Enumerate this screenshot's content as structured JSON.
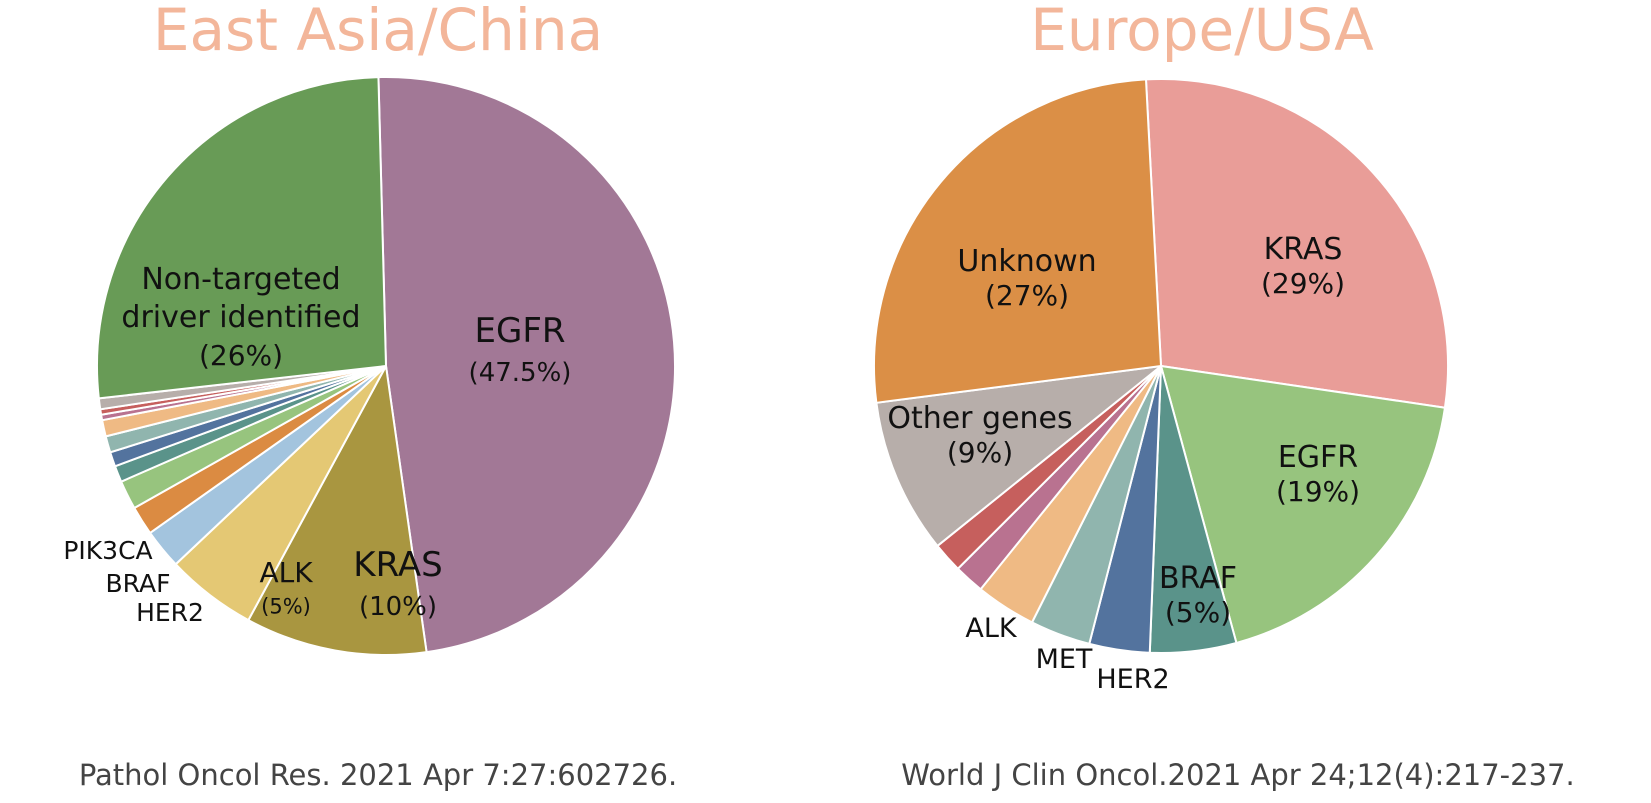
{
  "colors": {
    "title": "#f3b69a",
    "slice_edge": "#ffffff"
  },
  "chart_data": [
    {
      "type": "pie",
      "title": "East Asia/China",
      "source": "Pathol Oncol Res. 2021 Apr 7:27:602726.",
      "slices": [
        {
          "name": "EGFR",
          "value": 47.5,
          "color": "#a27896",
          "label": "EGFR",
          "pct_label": "(47.5%)"
        },
        {
          "name": "KRAS",
          "value": 10,
          "color": "#a99640",
          "label": "KRAS",
          "pct_label": "(10%)"
        },
        {
          "name": "ALK",
          "value": 5,
          "color": "#e4c874",
          "label": "ALK",
          "pct_label": "(5%)"
        },
        {
          "name": "HER2",
          "value": 2.2,
          "color": "#a3c4de",
          "label": "HER2",
          "pct_label": ""
        },
        {
          "name": "BRAF",
          "value": 1.6,
          "color": "#db8b42",
          "label": "BRAF",
          "pct_label": ""
        },
        {
          "name": "PIK3CA",
          "value": 1.6,
          "color": "#97c47e",
          "label": "PIK3CA",
          "pct_label": ""
        },
        {
          "name": "other-1",
          "value": 0.9,
          "color": "#5a938a",
          "label": "",
          "pct_label": ""
        },
        {
          "name": "other-2",
          "value": 0.8,
          "color": "#53739e",
          "label": "",
          "pct_label": ""
        },
        {
          "name": "other-3",
          "value": 0.9,
          "color": "#90b5ae",
          "label": "",
          "pct_label": ""
        },
        {
          "name": "other-4",
          "value": 0.9,
          "color": "#efba84",
          "label": "",
          "pct_label": ""
        },
        {
          "name": "other-5",
          "value": 0.3,
          "color": "#b97290",
          "label": "",
          "pct_label": ""
        },
        {
          "name": "other-6",
          "value": 0.3,
          "color": "#c65f5d",
          "label": "",
          "pct_label": ""
        },
        {
          "name": "other-7",
          "value": 0.6,
          "color": "#b7aeaa",
          "label": "",
          "pct_label": ""
        },
        {
          "name": "Non-targeted driver identified",
          "value": 26,
          "color": "#689b56",
          "label": "Non-targeted\ndriver identified",
          "pct_label": "(26%)"
        }
      ]
    },
    {
      "type": "pie",
      "title": "Europe/USA",
      "source": "World J Clin Oncol.2021 Apr 24;12(4):217-237.",
      "slices": [
        {
          "name": "KRAS",
          "value": 29,
          "color": "#e99d98",
          "label": "KRAS",
          "pct_label": "(29%)"
        },
        {
          "name": "EGFR",
          "value": 19,
          "color": "#97c47e",
          "label": "EGFR",
          "pct_label": "(19%)"
        },
        {
          "name": "BRAF",
          "value": 5,
          "color": "#5a938a",
          "label": "BRAF",
          "pct_label": "(5%)"
        },
        {
          "name": "HER2",
          "value": 3.5,
          "color": "#53739e",
          "label": "HER2",
          "pct_label": ""
        },
        {
          "name": "MET",
          "value": 3.5,
          "color": "#90b5ae",
          "label": "MET",
          "pct_label": ""
        },
        {
          "name": "ALK",
          "value": 3.5,
          "color": "#efba84",
          "label": "ALK",
          "pct_label": ""
        },
        {
          "name": "other-a",
          "value": 1.75,
          "color": "#b97290",
          "label": "",
          "pct_label": ""
        },
        {
          "name": "other-b",
          "value": 1.75,
          "color": "#c65f5d",
          "label": "",
          "pct_label": ""
        },
        {
          "name": "Other genes",
          "value": 9,
          "color": "#b7aeaa",
          "label": "Other genes",
          "pct_label": "(9%)"
        },
        {
          "name": "Unknown",
          "value": 27,
          "color": "#db8f46",
          "label": "Unknown",
          "pct_label": "(27%)"
        }
      ]
    }
  ]
}
